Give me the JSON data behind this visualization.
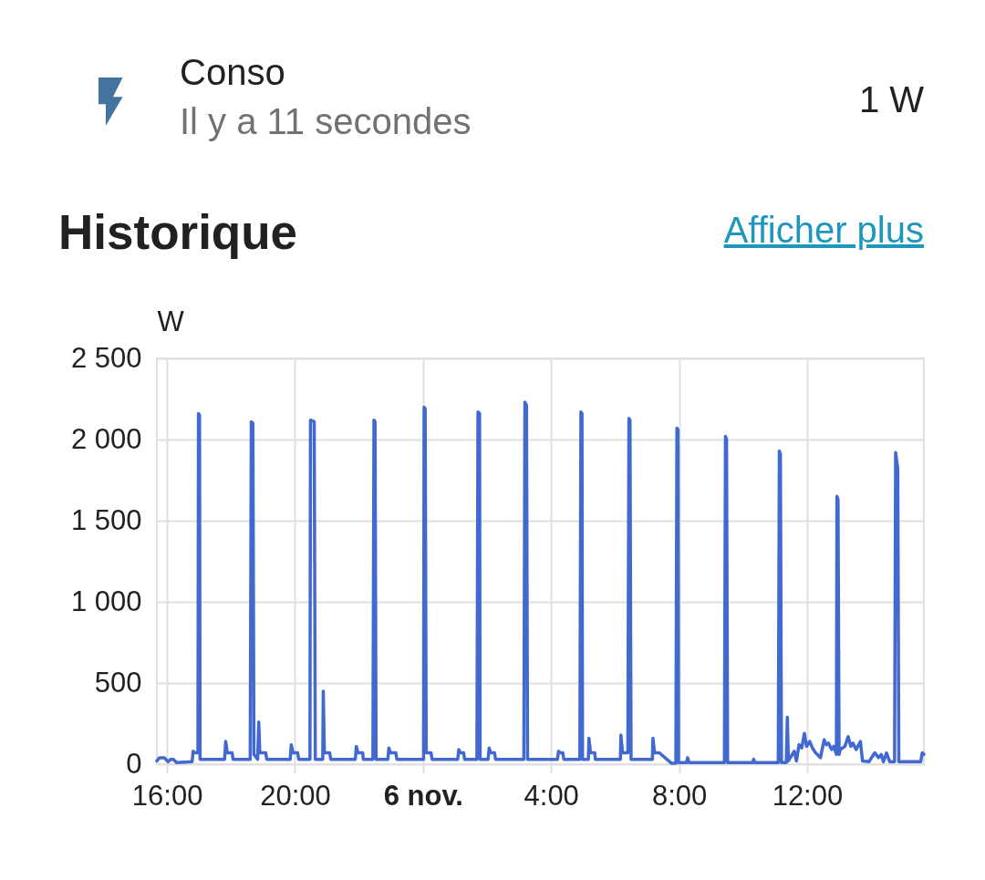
{
  "chart_data": {
    "type": "line",
    "title": "Conso",
    "subtitle": "Il y a 11 secondes",
    "annotations": [
      "1 W",
      "Historique",
      "Afficher plus"
    ],
    "ylabel": "W",
    "x": [
      "--11-05T15:41",
      "--11-05T15:46",
      "--11-05T15:55",
      "--11-05T16:02",
      "--11-05T16:07",
      "--11-05T16:12",
      "--11-05T16:18",
      "--11-05T16:47",
      "--11-05T16:49",
      "--11-05T16:52",
      "--11-05T16:58",
      "--11-05T16:59",
      "--11-05T17:01",
      "--11-05T17:02",
      "--11-05T17:48",
      "--11-05T17:50",
      "--11-05T17:53",
      "--11-05T18:02",
      "--11-05T18:04",
      "--11-05T18:36",
      "--11-05T18:38",
      "--11-05T18:41",
      "--11-05T18:43",
      "--11-05T18:50",
      "--11-05T18:52",
      "--11-05T18:54",
      "--11-05T19:05",
      "--11-05T19:07",
      "--11-05T19:51",
      "--11-05T19:53",
      "--11-05T19:56",
      "--11-05T20:05",
      "--11-05T20:07",
      "--11-05T20:28",
      "--11-05T20:29",
      "--11-05T20:36",
      "--11-05T20:38",
      "--11-05T20:52",
      "--11-05T20:53",
      "--11-05T20:55",
      "--11-05T21:05",
      "--11-05T21:07",
      "--11-05T21:53",
      "--11-05T21:55",
      "--11-05T21:58",
      "--11-05T22:07",
      "--11-05T22:08",
      "--11-05T22:26",
      "--11-05T22:28",
      "--11-05T22:30",
      "--11-05T22:32",
      "--11-05T22:54",
      "--11-05T22:56",
      "--11-05T22:59",
      "--11-05T23:09",
      "--11-05T23:11",
      "--11-06T00:01",
      "--11-06T00:02",
      "--11-06T00:04",
      "--11-06T00:06",
      "--11-06T00:15",
      "--11-06T00:17",
      "--11-06T01:05",
      "--11-06T01:07",
      "--11-06T01:10",
      "--11-06T01:16",
      "--11-06T01:18",
      "--11-06T01:41",
      "--11-06T01:43",
      "--11-06T01:46",
      "--11-06T01:47",
      "--11-06T02:02",
      "--11-06T02:04",
      "--11-06T02:07",
      "--11-06T02:14",
      "--11-06T02:16",
      "--11-06T03:09",
      "--11-06T03:11",
      "--11-06T03:14",
      "--11-06T03:16",
      "--11-06T04:12",
      "--11-06T04:14",
      "--11-06T04:17",
      "--11-06T04:22",
      "--11-06T04:24",
      "--11-06T04:54",
      "--11-06T04:56",
      "--11-06T04:58",
      "--11-06T04:59",
      "--11-06T05:10",
      "--11-06T05:11",
      "--11-06T05:14",
      "--11-06T05:22",
      "--11-06T05:23",
      "--11-06T06:10",
      "--11-06T06:11",
      "--11-06T06:14",
      "--11-06T06:24",
      "--11-06T06:26",
      "--11-06T06:28",
      "--11-06T06:30",
      "--11-06T07:10",
      "--11-06T07:11",
      "--11-06T07:14",
      "--11-06T07:23",
      "--11-06T07:46",
      "--11-06T07:54",
      "--11-06T07:56",
      "--11-06T07:58",
      "--11-06T07:59",
      "--11-06T08:14",
      "--11-06T08:16",
      "--11-06T08:19",
      "--11-06T09:25",
      "--11-06T09:27",
      "--11-06T09:29",
      "--11-06T09:31",
      "--11-06T10:18",
      "--11-06T10:20",
      "--11-06T10:22",
      "--11-06T11:06",
      "--11-06T11:08",
      "--11-06T11:10",
      "--11-06T11:12",
      "--11-06T11:21",
      "--11-06T11:23",
      "--11-06T11:25",
      "--11-06T11:36",
      "--11-06T11:40",
      "--11-06T11:45",
      "--11-06T11:50",
      "--11-06T11:55",
      "--11-06T11:59",
      "--11-06T12:05",
      "--11-06T12:10",
      "--11-06T12:16",
      "--11-06T12:25",
      "--11-06T12:32",
      "--11-06T12:36",
      "--11-06T12:40",
      "--11-06T12:46",
      "--11-06T12:50",
      "--11-06T12:55",
      "--11-06T12:56",
      "--11-06T12:58",
      "--11-06T13:00",
      "--11-06T13:02",
      "--11-06T13:11",
      "--11-06T13:17",
      "--11-06T13:22",
      "--11-06T13:26",
      "--11-06T13:32",
      "--11-06T13:40",
      "--11-06T13:44",
      "--11-06T13:56",
      "--11-06T14:07",
      "--11-06T14:14",
      "--11-06T14:19",
      "--11-06T14:23",
      "--11-06T14:29",
      "--11-06T14:35",
      "--11-06T14:44",
      "--11-06T14:46",
      "--11-06T14:50",
      "--11-06T14:52",
      "--11-06T15:33",
      "--11-06T15:36",
      "--11-06T15:39"
    ],
    "xlim": [
      "--11-05T15:41",
      "--11-06T15:39"
    ],
    "xticks": [
      {
        "value": "--11-05T16:00",
        "label": "16:00"
      },
      {
        "value": "--11-05T20:00",
        "label": "20:00"
      },
      {
        "value": "--11-06T00:00",
        "label": "6 nov."
      },
      {
        "value": "--11-06T04:00",
        "label": "4:00"
      },
      {
        "value": "--11-06T08:00",
        "label": "8:00"
      },
      {
        "value": "--11-06T12:00",
        "label": "12:00"
      }
    ],
    "ylim": [
      0,
      2500
    ],
    "yticks": [
      0,
      500,
      {
        "value": 1000,
        "label": "1 000"
      },
      {
        "value": 1500,
        "label": "1 500"
      },
      {
        "value": 2000,
        "label": "2 000"
      },
      {
        "value": 2500,
        "label": "2 500"
      }
    ],
    "grid": true,
    "series": [
      {
        "color": "#4269d0",
        "values": [
          20,
          40,
          40,
          15,
          30,
          30,
          10,
          15,
          80,
          70,
          70,
          2160,
          2150,
          30,
          30,
          140,
          70,
          70,
          30,
          30,
          2110,
          2100,
          60,
          30,
          260,
          70,
          70,
          30,
          30,
          120,
          70,
          70,
          30,
          30,
          2120,
          2110,
          30,
          30,
          450,
          70,
          70,
          30,
          30,
          110,
          70,
          70,
          30,
          30,
          2120,
          2110,
          30,
          30,
          100,
          70,
          70,
          30,
          30,
          2200,
          2190,
          70,
          70,
          30,
          30,
          90,
          70,
          70,
          30,
          30,
          2170,
          2160,
          30,
          30,
          100,
          70,
          70,
          30,
          30,
          2230,
          2210,
          30,
          30,
          80,
          70,
          70,
          30,
          30,
          2170,
          2160,
          30,
          30,
          160,
          70,
          70,
          30,
          30,
          180,
          70,
          70,
          2130,
          2120,
          30,
          30,
          160,
          70,
          70,
          5,
          5,
          2070,
          2060,
          10,
          10,
          40,
          10,
          10,
          2020,
          2000,
          10,
          10,
          30,
          10,
          10,
          1930,
          1910,
          10,
          10,
          290,
          20,
          80,
          20,
          120,
          100,
          190,
          110,
          140,
          100,
          70,
          40,
          150,
          120,
          130,
          90,
          110,
          60,
          1650,
          1630,
          60,
          90,
          110,
          170,
          110,
          130,
          90,
          140,
          20,
          15,
          70,
          40,
          60,
          15,
          70,
          15,
          15,
          1920,
          1820,
          15,
          15,
          70,
          60
        ]
      }
    ]
  }
}
